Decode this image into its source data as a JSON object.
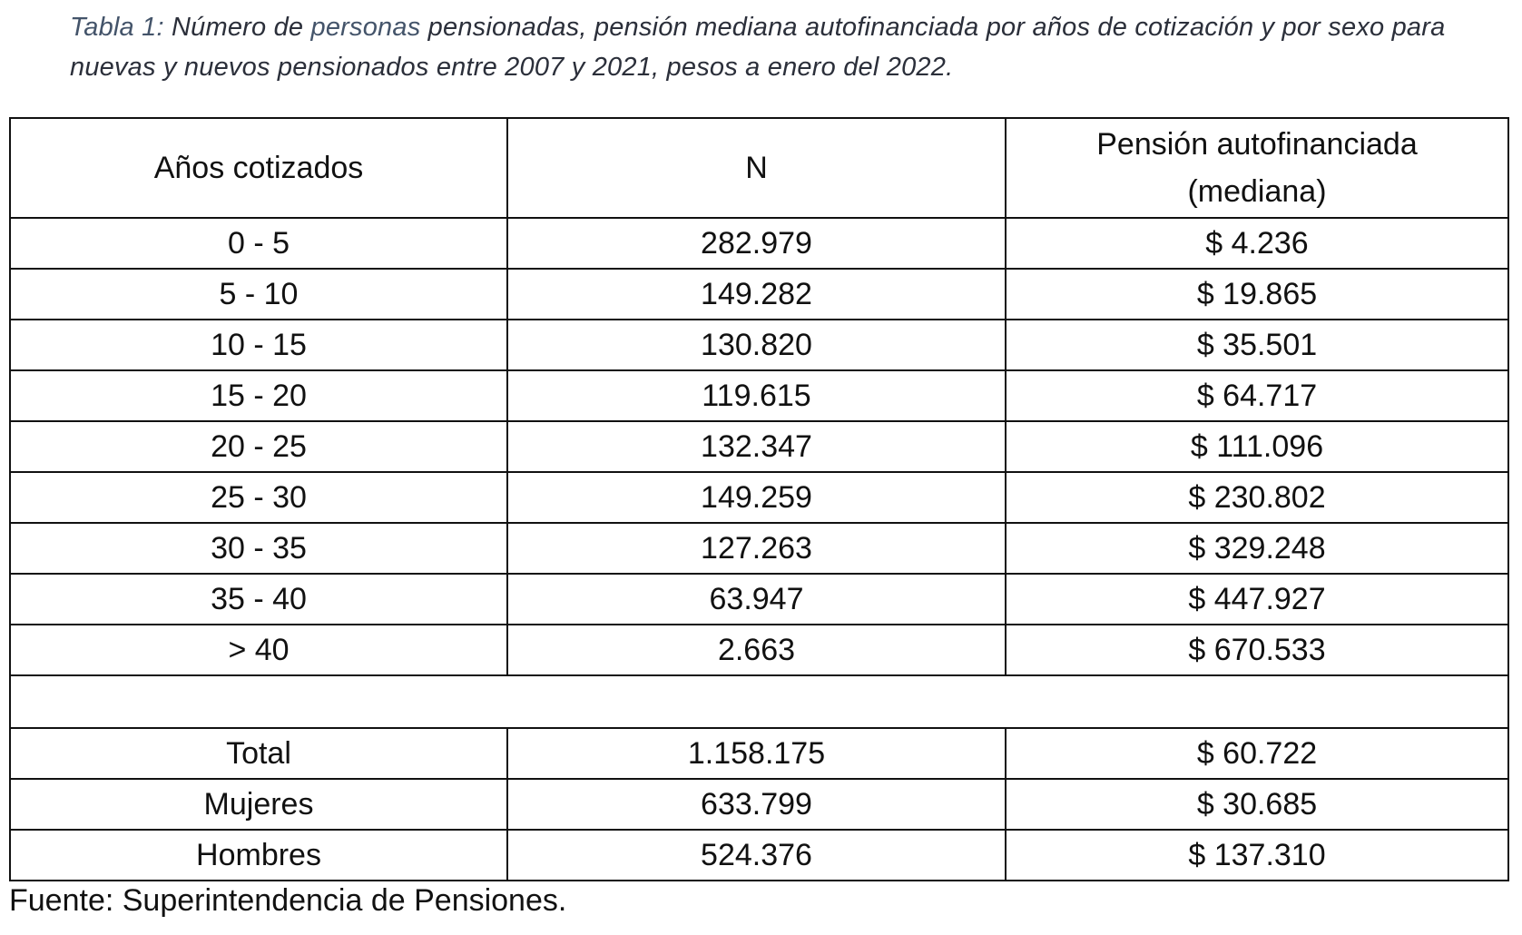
{
  "caption": {
    "label": "Tabla 1:",
    "text_before_highlight": " Número de ",
    "highlight": "personas",
    "text_after_highlight": " pensionadas, pensión mediana autofinanciada por años de cotización y por sexo para nuevas y nuevos pensionados entre 2007 y 2021, pesos a enero del 2022."
  },
  "table": {
    "headers": {
      "col1": "Años cotizados",
      "col2": "N",
      "col3_line1": "Pensión autofinanciada",
      "col3_line2": "(mediana)"
    },
    "rows": [
      {
        "years": "0 - 5",
        "n": "282.979",
        "pension": "$ 4.236"
      },
      {
        "years": "5 - 10",
        "n": "149.282",
        "pension": "$ 19.865"
      },
      {
        "years": "10 - 15",
        "n": "130.820",
        "pension": "$ 35.501"
      },
      {
        "years": "15 - 20",
        "n": "119.615",
        "pension": "$ 64.717"
      },
      {
        "years": "20 - 25",
        "n": "132.347",
        "pension": "$ 111.096"
      },
      {
        "years": "25 - 30",
        "n": "149.259",
        "pension": "$ 230.802"
      },
      {
        "years": "30 - 35",
        "n": "127.263",
        "pension": "$ 329.248"
      },
      {
        "years": "35 - 40",
        "n": "63.947",
        "pension": "$ 447.927"
      },
      {
        "years": "> 40",
        "n": "2.663",
        "pension": "$ 670.533"
      }
    ],
    "summary_rows": [
      {
        "group": "Total",
        "n": "1.158.175",
        "pension": "$ 60.722"
      },
      {
        "group": "Mujeres",
        "n": "633.799",
        "pension": "$ 30.685"
      },
      {
        "group": "Hombres",
        "n": "524.376",
        "pension": "$ 137.310"
      }
    ]
  },
  "source": "Fuente: Superintendencia de Pensiones."
}
